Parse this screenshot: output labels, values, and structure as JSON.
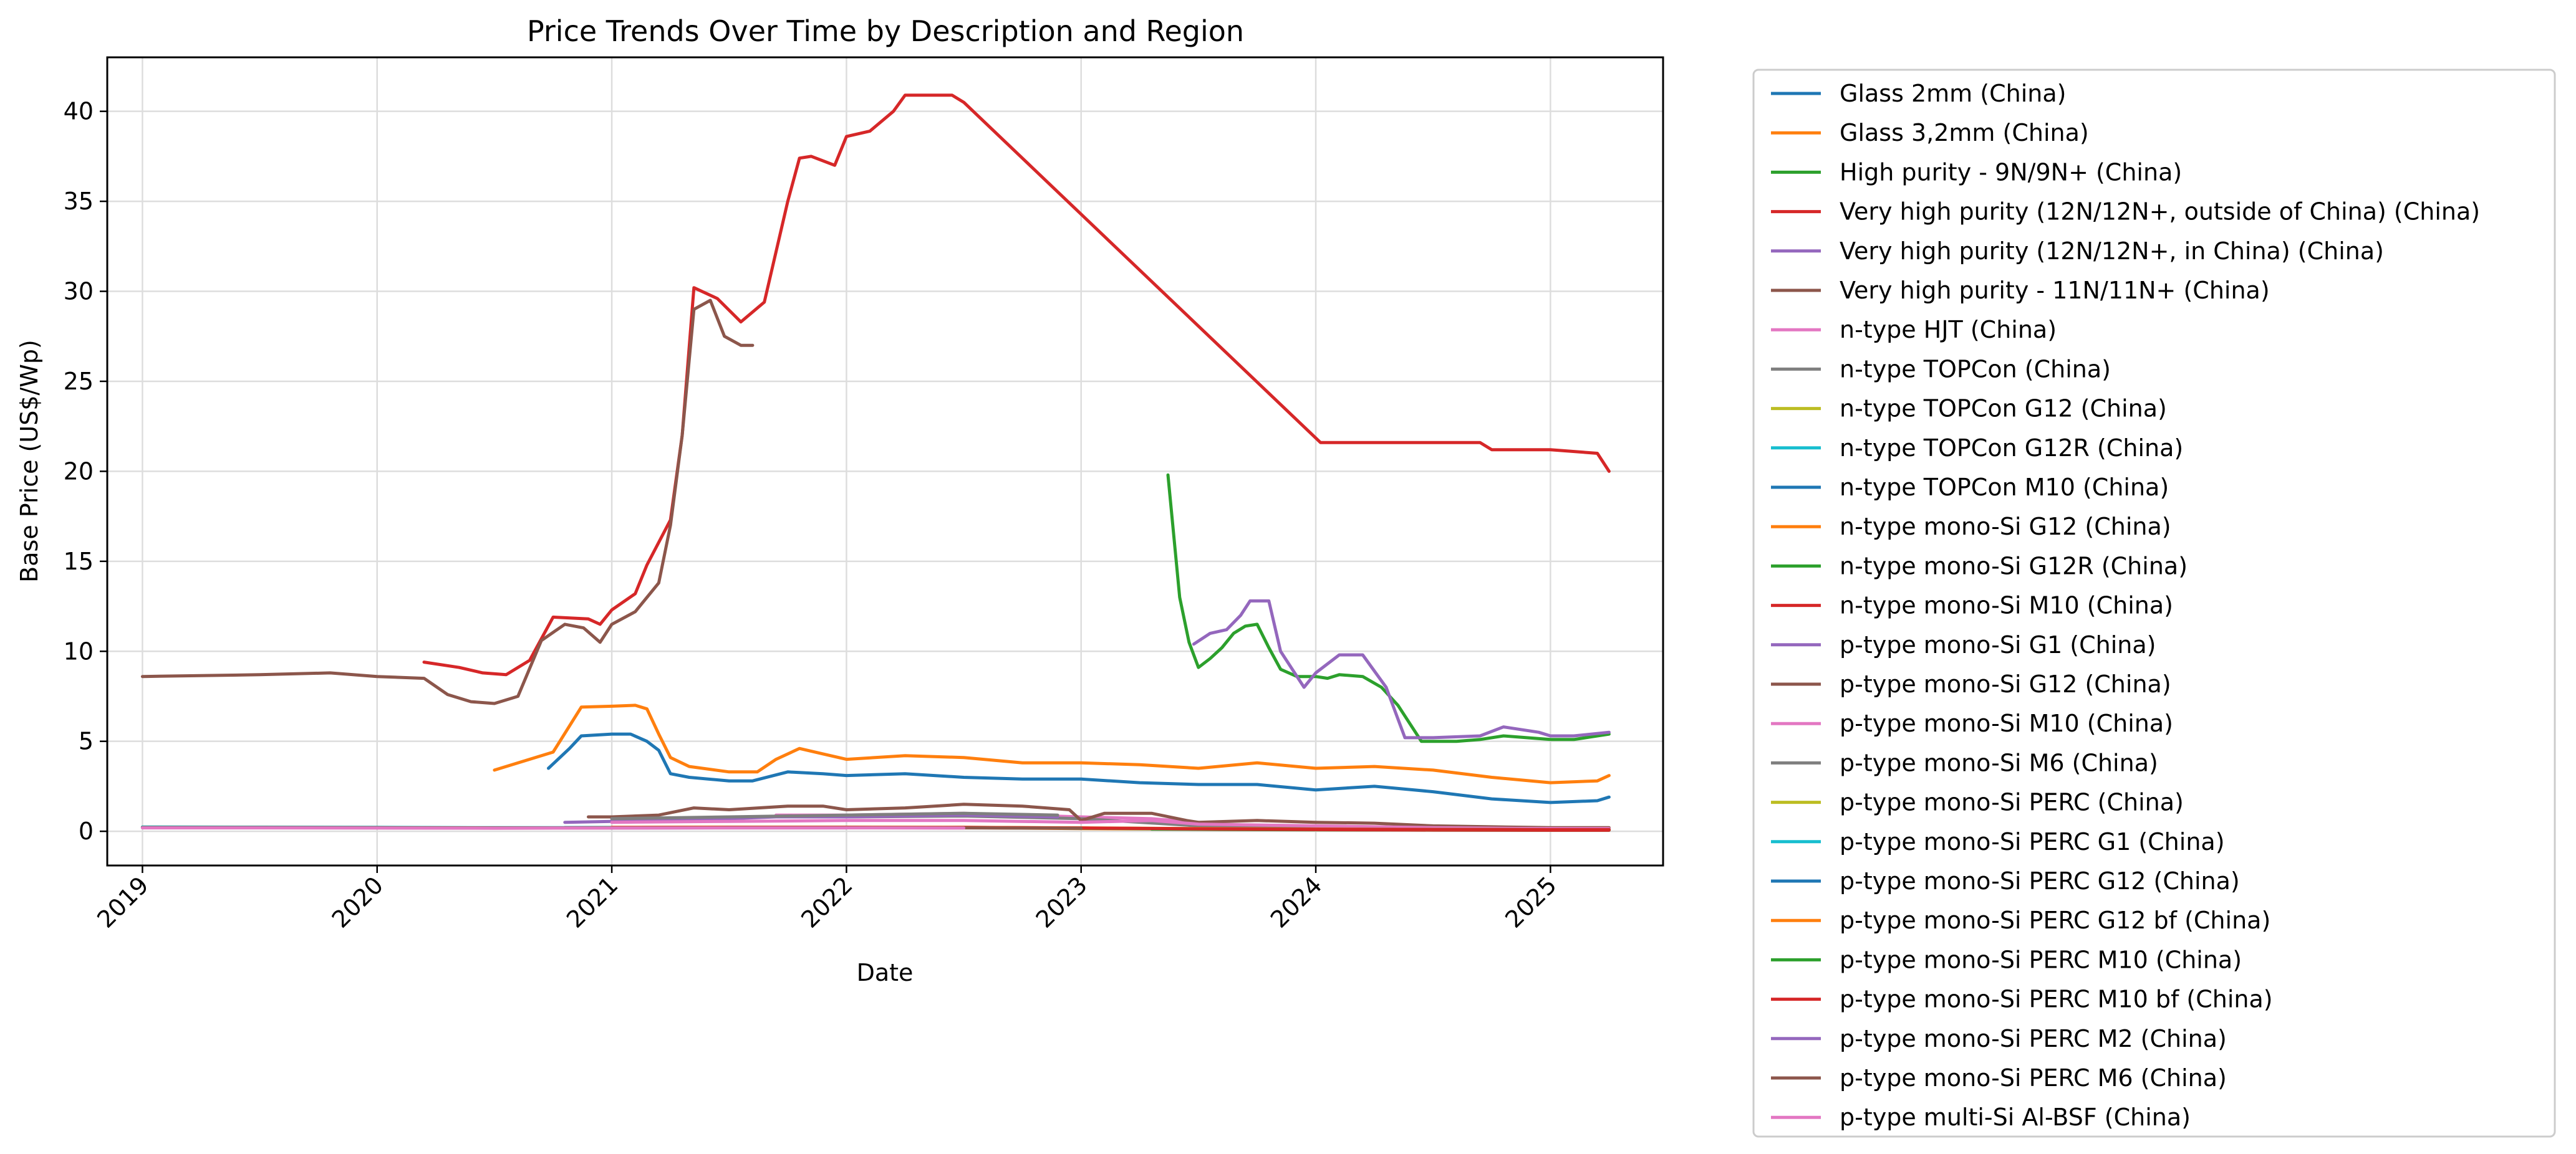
{
  "chart_data": {
    "type": "line",
    "title": "Price Trends Over Time by Description and Region",
    "xlabel": "Date",
    "ylabel": "Base Price (US$/Wp)",
    "xlim": [
      2018.85,
      2025.48
    ],
    "ylim": [
      -1.9,
      43
    ],
    "x_ticks": [
      2019,
      2020,
      2021,
      2022,
      2023,
      2024,
      2025
    ],
    "y_ticks": [
      0,
      5,
      10,
      15,
      20,
      25,
      30,
      35,
      40
    ],
    "grid": true,
    "legend_position": "outside-right",
    "series": [
      {
        "name": "Glass 2mm (China)",
        "color": "#1f77b4",
        "x": [
          2020.73,
          2020.82,
          2020.87,
          2021.0,
          2021.08,
          2021.15,
          2021.2,
          2021.25,
          2021.33,
          2021.5,
          2021.6,
          2021.75,
          2021.9,
          2022.0,
          2022.25,
          2022.5,
          2022.75,
          2023.0,
          2023.25,
          2023.5,
          2023.75,
          2024.0,
          2024.25,
          2024.5,
          2024.75,
          2025.0,
          2025.2,
          2025.25
        ],
        "y": [
          3.5,
          4.6,
          5.3,
          5.4,
          5.4,
          5.0,
          4.5,
          3.2,
          3.0,
          2.8,
          2.8,
          3.3,
          3.2,
          3.1,
          3.2,
          3.0,
          2.9,
          2.9,
          2.7,
          2.6,
          2.6,
          2.3,
          2.5,
          2.2,
          1.8,
          1.6,
          1.7,
          1.9
        ]
      },
      {
        "name": "Glass 3,2mm (China)",
        "color": "#ff7f0e",
        "x": [
          2020.5,
          2020.75,
          2020.87,
          2021.0,
          2021.1,
          2021.15,
          2021.2,
          2021.25,
          2021.33,
          2021.5,
          2021.62,
          2021.7,
          2021.8,
          2021.9,
          2022.0,
          2022.25,
          2022.5,
          2022.75,
          2023.0,
          2023.25,
          2023.5,
          2023.75,
          2024.0,
          2024.25,
          2024.5,
          2024.75,
          2025.0,
          2025.2,
          2025.25
        ],
        "y": [
          3.4,
          4.4,
          6.9,
          6.95,
          7.0,
          6.8,
          5.4,
          4.1,
          3.6,
          3.3,
          3.3,
          4.0,
          4.6,
          4.3,
          4.0,
          4.2,
          4.1,
          3.8,
          3.8,
          3.7,
          3.5,
          3.8,
          3.5,
          3.6,
          3.4,
          3.0,
          2.7,
          2.8,
          3.1
        ]
      },
      {
        "name": "High purity - 9N/9N+ (China)",
        "color": "#2ca02c",
        "x": [
          2023.37,
          2023.42,
          2023.46,
          2023.5,
          2023.55,
          2023.6,
          2023.65,
          2023.7,
          2023.75,
          2023.8,
          2023.85,
          2023.92,
          2024.0,
          2024.05,
          2024.1,
          2024.2,
          2024.28,
          2024.35,
          2024.45,
          2024.6,
          2024.7,
          2024.8,
          2024.9,
          2025.0,
          2025.1,
          2025.2,
          2025.25
        ],
        "y": [
          19.8,
          13.0,
          10.5,
          9.1,
          9.6,
          10.2,
          11.0,
          11.4,
          11.5,
          10.2,
          9.0,
          8.6,
          8.6,
          8.5,
          8.7,
          8.6,
          8.0,
          7.0,
          5.0,
          5.0,
          5.1,
          5.3,
          5.2,
          5.1,
          5.1,
          5.3,
          5.4
        ]
      },
      {
        "name": "Very high purity  (12N/12N+, outside of China) (China)",
        "color": "#d62728",
        "x": [
          2020.2,
          2020.35,
          2020.45,
          2020.55,
          2020.65,
          2020.75,
          2020.9,
          2020.95,
          2021.0,
          2021.1,
          2021.15,
          2021.25,
          2021.3,
          2021.35,
          2021.45,
          2021.55,
          2021.65,
          2021.75,
          2021.8,
          2021.85,
          2021.95,
          2022.0,
          2022.1,
          2022.2,
          2022.25,
          2022.3,
          2022.45,
          2022.5,
          2024.02,
          2024.7,
          2024.75,
          2025.0,
          2025.2,
          2025.25
        ],
        "y": [
          9.4,
          9.1,
          8.8,
          8.7,
          9.5,
          11.9,
          11.8,
          11.5,
          12.3,
          13.2,
          14.8,
          17.3,
          22.0,
          30.2,
          29.6,
          28.3,
          29.4,
          35.0,
          37.4,
          37.5,
          37.0,
          38.6,
          38.9,
          40.0,
          40.9,
          40.9,
          40.9,
          40.5,
          21.6,
          21.6,
          21.2,
          21.2,
          21.0,
          20.0
        ]
      },
      {
        "name": "Very high purity (12N/12N+, in China) (China)",
        "color": "#9467bd",
        "x": [
          2023.48,
          2023.55,
          2023.62,
          2023.68,
          2023.72,
          2023.8,
          2023.85,
          2023.95,
          2024.0,
          2024.1,
          2024.2,
          2024.3,
          2024.38,
          2024.5,
          2024.7,
          2024.8,
          2024.95,
          2025.0,
          2025.1,
          2025.25
        ],
        "y": [
          10.4,
          11.0,
          11.2,
          12.0,
          12.8,
          12.8,
          10.0,
          8.0,
          8.8,
          9.8,
          9.8,
          8.0,
          5.2,
          5.2,
          5.3,
          5.8,
          5.5,
          5.3,
          5.3,
          5.5
        ]
      },
      {
        "name": "Very high purity - 11N/11N+ (China)",
        "color": "#8c564b",
        "x": [
          2019.0,
          2019.5,
          2019.8,
          2020.0,
          2020.2,
          2020.3,
          2020.4,
          2020.5,
          2020.6,
          2020.7,
          2020.8,
          2020.88,
          2020.95,
          2021.0,
          2021.1,
          2021.2,
          2021.25,
          2021.3,
          2021.35,
          2021.42,
          2021.48,
          2021.55,
          2021.6
        ],
        "y": [
          8.6,
          8.7,
          8.8,
          8.6,
          8.5,
          7.6,
          7.2,
          7.1,
          7.5,
          10.6,
          11.5,
          11.3,
          10.5,
          11.5,
          12.2,
          13.8,
          17.0,
          22.0,
          29.0,
          29.5,
          27.5,
          27.0,
          27.0
        ]
      },
      {
        "name": "n-type HJT (China)",
        "color": "#e377c2",
        "x": [
          2021.7,
          2022.0,
          2022.5,
          2023.0,
          2023.3,
          2023.5
        ],
        "y": [
          0.9,
          0.9,
          1.0,
          0.8,
          0.7,
          0.5
        ]
      },
      {
        "name": "n-type TOPCon (China)",
        "color": "#7f7f7f",
        "x": [
          2022.0,
          2022.5,
          2023.0,
          2023.5,
          2024.0,
          2024.5,
          2025.0,
          2025.25
        ],
        "y": [
          0.8,
          0.85,
          0.7,
          0.3,
          0.2,
          0.15,
          0.1,
          0.1
        ]
      },
      {
        "name": "n-type TOPCon G12 (China)",
        "color": "#bcbd22",
        "x": [
          2023.0,
          2023.5,
          2024.0,
          2024.5,
          2025.0,
          2025.25
        ],
        "y": [
          0.18,
          0.15,
          0.12,
          0.1,
          0.08,
          0.08
        ]
      },
      {
        "name": "n-type TOPCon G12R (China)",
        "color": "#17becf",
        "x": [
          2023.3,
          2023.5,
          2024.0,
          2024.5,
          2025.0,
          2025.25
        ],
        "y": [
          0.16,
          0.14,
          0.11,
          0.1,
          0.09,
          0.09
        ]
      },
      {
        "name": "n-type TOPCon M10 (China)",
        "color": "#1f77b4",
        "x": [
          2023.2,
          2023.5,
          2024.0,
          2024.5,
          2025.0,
          2025.25
        ],
        "y": [
          0.15,
          0.13,
          0.1,
          0.09,
          0.08,
          0.08
        ]
      },
      {
        "name": "n-type mono-Si G12 (China)",
        "color": "#ff7f0e",
        "x": [
          2022.5,
          2023.0,
          2023.5,
          2024.0,
          2024.5,
          2025.0,
          2025.25
        ],
        "y": [
          0.2,
          0.15,
          0.12,
          0.1,
          0.08,
          0.07,
          0.07
        ]
      },
      {
        "name": "n-type mono-Si G12R (China)",
        "color": "#2ca02c",
        "x": [
          2023.3,
          2023.6,
          2024.0,
          2024.5,
          2025.0,
          2025.25
        ],
        "y": [
          0.12,
          0.1,
          0.08,
          0.07,
          0.06,
          0.06
        ]
      },
      {
        "name": "n-type mono-Si M10 (China)",
        "color": "#d62728",
        "x": [
          2022.0,
          2022.5,
          2023.0,
          2023.5,
          2024.0,
          2024.5,
          2025.0,
          2025.25
        ],
        "y": [
          0.2,
          0.22,
          0.18,
          0.12,
          0.09,
          0.07,
          0.06,
          0.06
        ]
      },
      {
        "name": "p-type mono-Si G1 (China)",
        "color": "#9467bd",
        "x": [
          2020.8,
          2021.0,
          2021.5,
          2021.7,
          2022.0,
          2022.5,
          2022.9
        ],
        "y": [
          0.5,
          0.55,
          0.7,
          0.8,
          0.8,
          0.9,
          0.8
        ]
      },
      {
        "name": "p-type mono-Si G12 (China)",
        "color": "#8c564b",
        "x": [
          2020.9,
          2021.0,
          2021.2,
          2021.35,
          2021.5,
          2021.75,
          2021.9,
          2022.0,
          2022.25,
          2022.5,
          2022.75,
          2022.95,
          2023.0,
          2023.1,
          2023.3,
          2023.45,
          2023.5,
          2023.75,
          2024.0,
          2024.25,
          2024.5,
          2024.75,
          2025.0,
          2025.25
        ],
        "y": [
          0.8,
          0.8,
          0.9,
          1.3,
          1.2,
          1.4,
          1.4,
          1.2,
          1.3,
          1.5,
          1.4,
          1.2,
          0.6,
          1.0,
          1.0,
          0.6,
          0.5,
          0.6,
          0.5,
          0.45,
          0.3,
          0.25,
          0.2,
          0.2
        ]
      },
      {
        "name": "p-type mono-Si M10 (China)",
        "color": "#e377c2",
        "x": [
          2021.0,
          2021.5,
          2022.0,
          2022.5,
          2023.0,
          2023.3,
          2023.5,
          2024.0,
          2024.5,
          2025.0,
          2025.25
        ],
        "y": [
          0.5,
          0.55,
          0.6,
          0.6,
          0.5,
          0.6,
          0.4,
          0.3,
          0.2,
          0.15,
          0.15
        ]
      },
      {
        "name": "p-type mono-Si M6 (China)",
        "color": "#7f7f7f",
        "x": [
          2021.0,
          2021.5,
          2022.0,
          2022.5,
          2022.9
        ],
        "y": [
          0.7,
          0.8,
          0.9,
          1.0,
          0.9
        ]
      },
      {
        "name": "p-type mono-Si PERC (China)",
        "color": "#bcbd22",
        "x": [
          2019.0,
          2019.5,
          2020.0,
          2020.5,
          2021.0,
          2021.5,
          2022.0,
          2022.5,
          2023.0,
          2023.5,
          2024.0,
          2024.5,
          2025.0,
          2025.25
        ],
        "y": [
          0.22,
          0.21,
          0.2,
          0.18,
          0.19,
          0.2,
          0.2,
          0.2,
          0.17,
          0.14,
          0.12,
          0.1,
          0.09,
          0.09
        ]
      },
      {
        "name": "p-type mono-Si PERC G1 (China)",
        "color": "#17becf",
        "x": [
          2019.0,
          2019.5,
          2020.0,
          2020.5,
          2021.0,
          2021.5,
          2022.0,
          2022.5,
          2023.0
        ],
        "y": [
          0.24,
          0.23,
          0.22,
          0.2,
          0.2,
          0.21,
          0.21,
          0.2,
          0.18
        ]
      },
      {
        "name": "p-type mono-Si PERC G12 (China)",
        "color": "#1f77b4",
        "x": [
          2020.8,
          2021.0,
          2021.5,
          2022.0,
          2022.5,
          2023.0,
          2023.5,
          2024.0,
          2024.5,
          2025.0,
          2025.25
        ],
        "y": [
          0.2,
          0.21,
          0.22,
          0.22,
          0.21,
          0.18,
          0.14,
          0.12,
          0.1,
          0.09,
          0.09
        ]
      },
      {
        "name": "p-type mono-Si PERC G12 bf (China)",
        "color": "#ff7f0e",
        "x": [
          2021.0,
          2021.5,
          2022.0,
          2022.5,
          2023.0,
          2023.5,
          2024.0,
          2024.5,
          2025.0,
          2025.25
        ],
        "y": [
          0.22,
          0.23,
          0.23,
          0.22,
          0.19,
          0.15,
          0.12,
          0.1,
          0.09,
          0.09
        ]
      },
      {
        "name": "p-type mono-Si PERC M10 (China)",
        "color": "#2ca02c",
        "x": [
          2020.8,
          2021.0,
          2021.5,
          2022.0,
          2022.5,
          2023.0,
          2023.5,
          2024.0,
          2024.5,
          2025.0,
          2025.25
        ],
        "y": [
          0.19,
          0.2,
          0.21,
          0.21,
          0.2,
          0.17,
          0.13,
          0.11,
          0.1,
          0.09,
          0.09
        ]
      },
      {
        "name": "p-type mono-Si PERC M10 bf (China)",
        "color": "#d62728",
        "x": [
          2021.0,
          2021.5,
          2022.0,
          2022.5,
          2023.0,
          2023.5,
          2024.0,
          2024.5,
          2025.0,
          2025.25
        ],
        "y": [
          0.21,
          0.22,
          0.22,
          0.21,
          0.18,
          0.14,
          0.11,
          0.1,
          0.09,
          0.09
        ]
      },
      {
        "name": "p-type mono-Si PERC M2 (China)",
        "color": "#9467bd",
        "x": [
          2019.0,
          2019.5,
          2020.0,
          2020.5,
          2021.0,
          2021.5,
          2022.0
        ],
        "y": [
          0.2,
          0.2,
          0.19,
          0.18,
          0.18,
          0.19,
          0.19
        ]
      },
      {
        "name": "p-type mono-Si PERC M6 (China)",
        "color": "#8c564b",
        "x": [
          2019.0,
          2019.5,
          2020.0,
          2020.5,
          2021.0,
          2021.5,
          2022.0,
          2022.5,
          2023.0
        ],
        "y": [
          0.21,
          0.21,
          0.2,
          0.19,
          0.19,
          0.2,
          0.2,
          0.19,
          0.17
        ]
      },
      {
        "name": "p-type multi-Si Al-BSF (China)",
        "color": "#e377c2",
        "x": [
          2019.0,
          2019.5,
          2020.0,
          2020.5,
          2021.0,
          2021.5,
          2022.0,
          2022.5
        ],
        "y": [
          0.19,
          0.19,
          0.18,
          0.17,
          0.18,
          0.19,
          0.19,
          0.18
        ]
      }
    ]
  }
}
